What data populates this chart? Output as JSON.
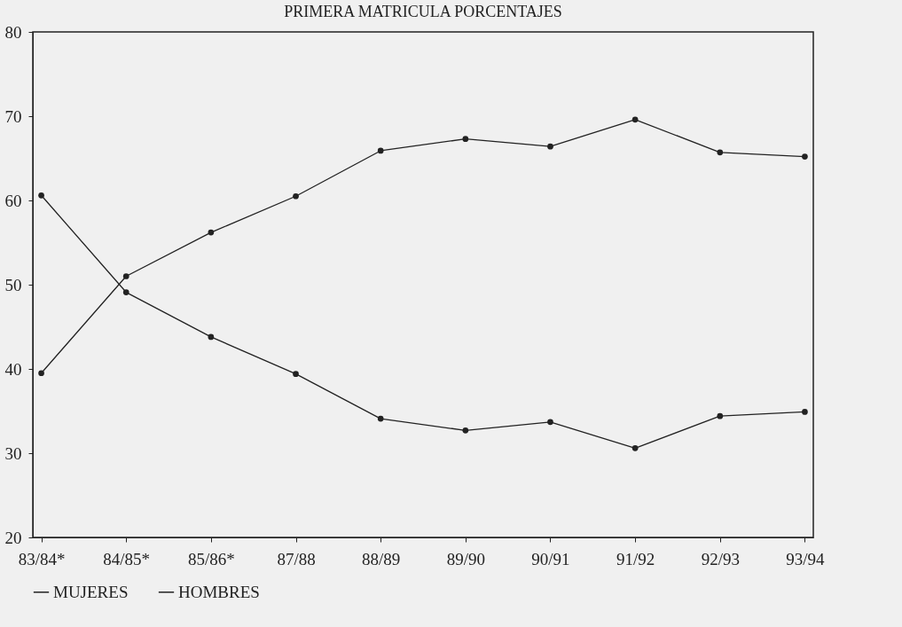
{
  "chart_data": {
    "type": "line",
    "title": "PRIMERA MATRICULA PORCENTAJES",
    "categories": [
      "83/84*",
      "84/85*",
      "85/86*",
      "87/88",
      "88/89",
      "89/90",
      "90/91",
      "91/92",
      "92/93",
      "93/94"
    ],
    "series": [
      {
        "name": "MUJERES",
        "color": "#222222",
        "values": [
          39.5,
          51.0,
          56.2,
          60.5,
          65.9,
          67.3,
          66.4,
          69.6,
          65.7,
          65.2
        ]
      },
      {
        "name": "HOMBRES",
        "color": "#222222",
        "values": [
          60.6,
          49.1,
          43.8,
          39.4,
          34.1,
          32.7,
          33.7,
          30.6,
          34.4,
          34.9
        ]
      }
    ],
    "ylim": [
      20,
      80
    ],
    "yticks": [
      20,
      30,
      40,
      50,
      60,
      70,
      80
    ],
    "grid": false,
    "legend": "bottom",
    "marker": "circle",
    "line_style": "solid"
  }
}
